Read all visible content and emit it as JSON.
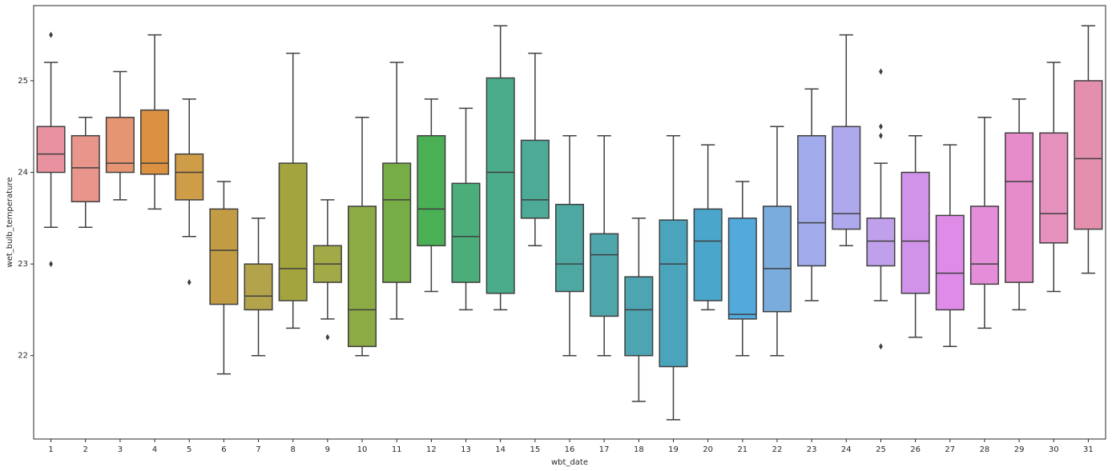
{
  "chart_data": {
    "type": "box",
    "x_label": "wbt_date",
    "y_label": "wet_bulb_temperature",
    "categories": [
      "1",
      "2",
      "3",
      "4",
      "5",
      "6",
      "7",
      "8",
      "9",
      "10",
      "11",
      "12",
      "13",
      "14",
      "15",
      "16",
      "17",
      "18",
      "19",
      "20",
      "21",
      "22",
      "23",
      "24",
      "25",
      "26",
      "27",
      "28",
      "29",
      "30",
      "31"
    ],
    "whisker_low": [
      23.4,
      23.4,
      23.7,
      23.6,
      23.3,
      21.8,
      22.0,
      22.3,
      22.4,
      22.0,
      22.4,
      22.7,
      22.5,
      22.5,
      23.2,
      22.0,
      22.0,
      21.5,
      21.3,
      22.5,
      22.0,
      22.0,
      22.6,
      23.2,
      22.6,
      22.2,
      22.1,
      22.3,
      22.5,
      22.7,
      22.9
    ],
    "q1": [
      24.0,
      23.68,
      24.0,
      23.98,
      23.7,
      22.56,
      22.5,
      22.6,
      22.8,
      22.1,
      22.8,
      23.2,
      22.8,
      22.68,
      23.5,
      22.7,
      22.43,
      22.0,
      21.88,
      22.6,
      22.4,
      22.48,
      22.98,
      23.38,
      22.98,
      22.68,
      22.5,
      22.78,
      22.8,
      23.23,
      23.38
    ],
    "median": [
      24.2,
      24.05,
      24.1,
      24.1,
      24.0,
      23.15,
      22.65,
      22.95,
      23.0,
      22.5,
      23.7,
      23.6,
      23.3,
      24.0,
      23.7,
      23.0,
      23.1,
      22.5,
      23.0,
      23.25,
      22.45,
      22.95,
      23.45,
      23.55,
      23.25,
      23.25,
      22.9,
      23.0,
      23.9,
      23.55,
      24.15
    ],
    "q3": [
      24.5,
      24.4,
      24.6,
      24.68,
      24.2,
      23.6,
      23.0,
      24.1,
      23.2,
      23.63,
      24.1,
      24.4,
      23.88,
      25.03,
      24.35,
      23.65,
      23.33,
      22.86,
      23.48,
      23.6,
      23.5,
      23.63,
      24.4,
      24.5,
      23.5,
      24.0,
      23.53,
      23.63,
      24.43,
      24.43,
      25.0
    ],
    "whisker_high": [
      25.2,
      24.6,
      25.1,
      25.5,
      24.8,
      23.9,
      23.5,
      25.3,
      23.7,
      24.6,
      25.2,
      24.8,
      24.7,
      25.6,
      25.3,
      24.4,
      24.4,
      23.5,
      24.4,
      24.3,
      23.9,
      24.5,
      24.91,
      25.5,
      24.1,
      24.4,
      24.3,
      24.6,
      24.8,
      25.2,
      25.6
    ],
    "outliers": [
      [
        25.5,
        23.0
      ],
      [],
      [],
      [],
      [
        22.8
      ],
      [],
      [],
      [],
      [
        22.2
      ],
      [],
      [],
      [],
      [],
      [],
      [],
      [],
      [],
      [],
      [],
      [],
      [],
      [],
      [],
      [],
      [
        25.1,
        24.5,
        24.4,
        22.1
      ],
      [],
      [],
      [],
      [],
      [],
      []
    ],
    "colors": [
      "#e8929f",
      "#e8968b",
      "#e59572",
      "#dc9140",
      "#cf9d48",
      "#c19c45",
      "#b3a34a",
      "#a3a43e",
      "#a1aa46",
      "#8dab44",
      "#77ad46",
      "#4aaf55",
      "#4aad7a",
      "#4bac8c",
      "#4caa97",
      "#4da8a1",
      "#4fa6aa",
      "#4ea5b2",
      "#4aa4bb",
      "#4aa6cb",
      "#52a9dc",
      "#7aacdd",
      "#a1aaea",
      "#aea8ec",
      "#c1a0eb",
      "#d193ea",
      "#df8ce9",
      "#e48dd8",
      "#e68cca",
      "#e590bd",
      "#e58fae"
    ],
    "ylim": [
      21.09,
      25.82
    ],
    "yticks": [
      22,
      23,
      24,
      25
    ]
  }
}
